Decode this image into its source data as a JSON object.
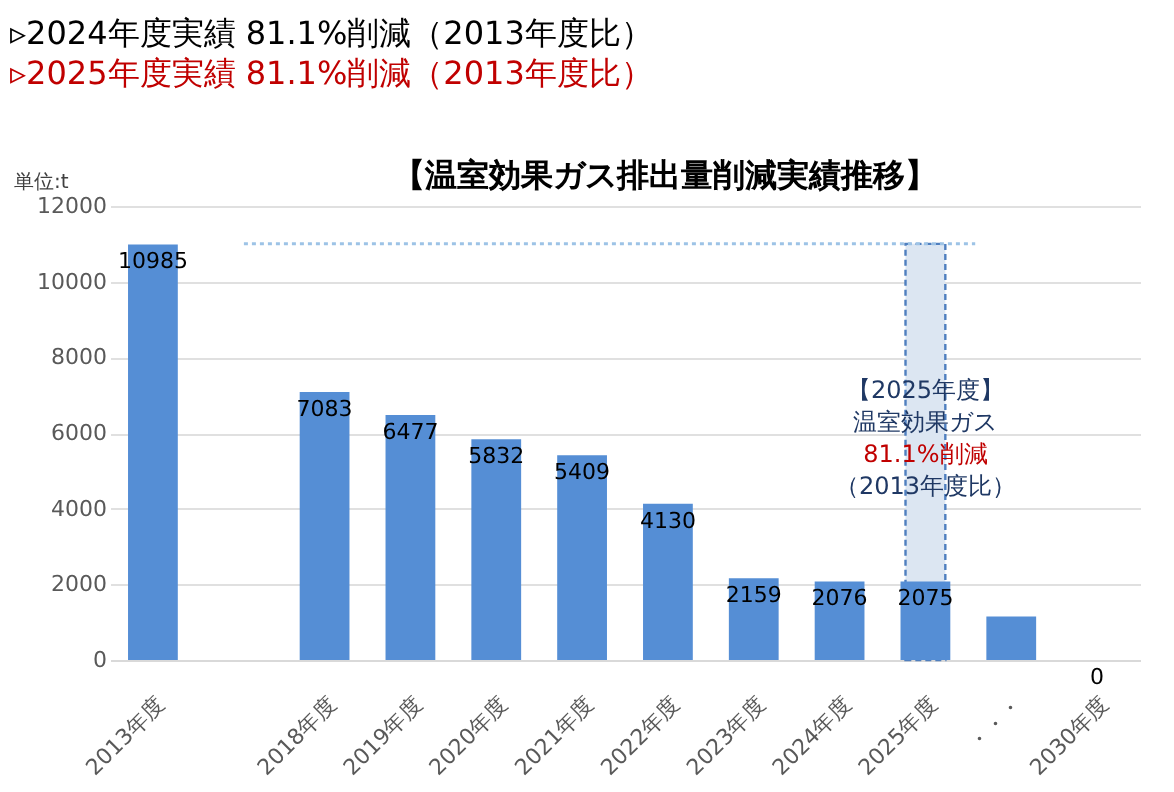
{
  "chart_data": {
    "type": "bar",
    "title": "【温室効果ガス排出量削減実績推移】",
    "ylabel": "単位:t",
    "annotations": [
      "▹2024年度実績  81.1%削減（2013年度比）",
      "▹2025年度実績  81.1%削減（2013年度比）",
      "【2025年度】",
      "温室効果ガス",
      "81.1%削減",
      "（2013年度比）"
    ],
    "categories": [
      "2013年度",
      null,
      "2018年度",
      "2019年度",
      "2020年度",
      "2021年度",
      "2022年度",
      "2023年度",
      "2024年度",
      "2025年度",
      "・・・",
      "2030年度"
    ],
    "series": [
      {
        "color": "#558ed5",
        "values": [
          10985,
          null,
          7083,
          6477,
          5832,
          5409,
          4130,
          2159,
          2076,
          2075,
          1150,
          0
        ],
        "value_labels": [
          "10985",
          null,
          "7083",
          "6477",
          "5832",
          "5409",
          "4130",
          "2159",
          "2076",
          "2075",
          null,
          "0"
        ]
      }
    ],
    "ylim": [
      0,
      12000
    ],
    "yticks": [
      0,
      2000,
      4000,
      6000,
      8000,
      10000,
      12000
    ],
    "grid": "y",
    "ref_lines": [
      {
        "axis": "y",
        "value": 11000,
        "label": null,
        "color": "#9dc3e6",
        "line_style": "dotted"
      }
    ],
    "bands": [
      {
        "axis": "x",
        "from": "2025年度",
        "to": "2025年度",
        "label": null,
        "color": "#dce6f2"
      }
    ]
  }
}
